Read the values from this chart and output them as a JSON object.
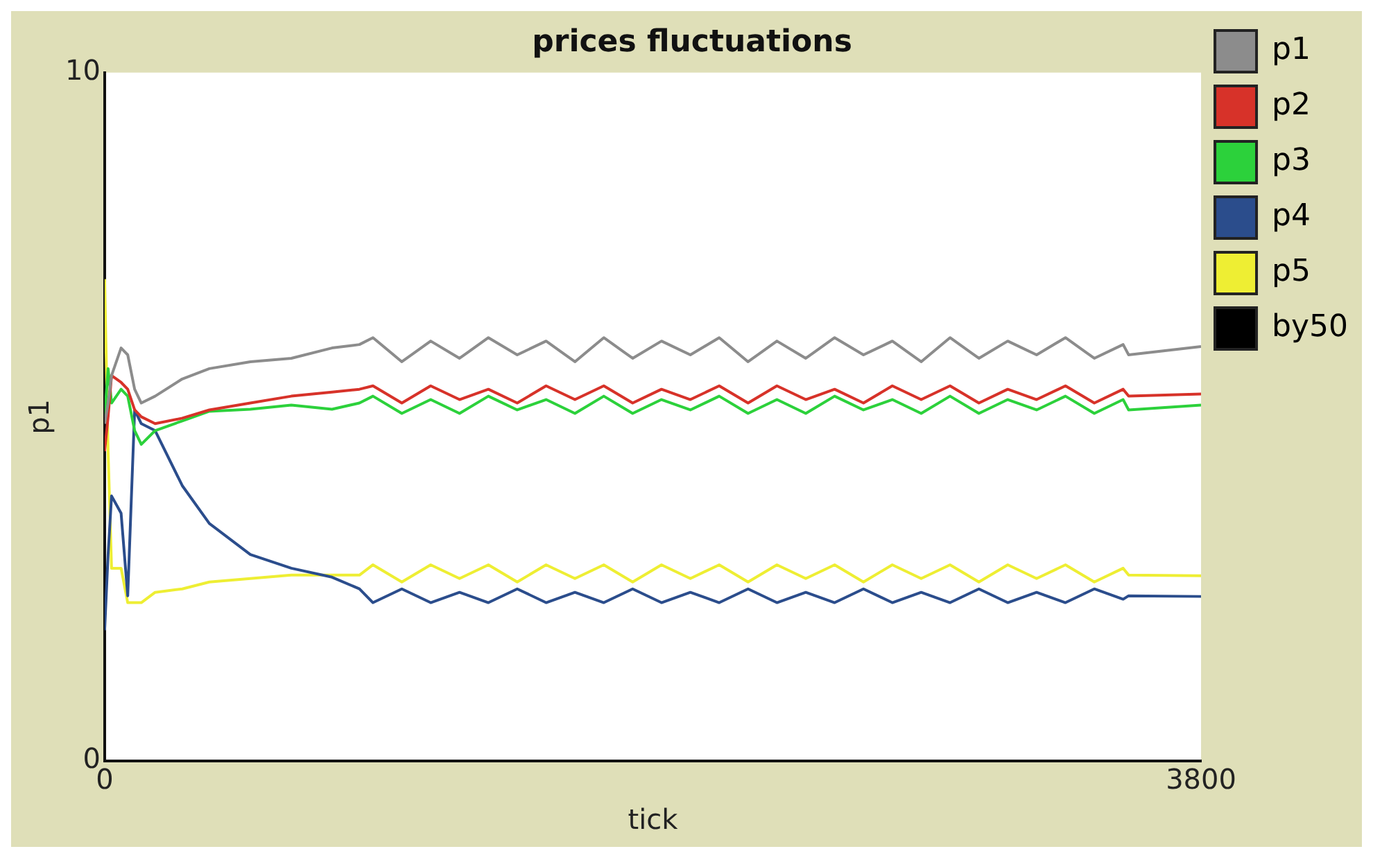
{
  "chart_data": {
    "type": "line",
    "title": "prices fluctuations",
    "xlabel": "tick",
    "ylabel": "p1",
    "x": [
      0,
      12,
      24,
      57,
      80,
      104,
      127,
      175,
      269,
      363,
      505,
      647,
      788,
      883,
      930,
      1030,
      1130,
      1230,
      1330,
      1430,
      1530,
      1630,
      1730,
      1830,
      1930,
      2030,
      2130,
      2230,
      2330,
      2430,
      2530,
      2630,
      2730,
      2830,
      2930,
      3030,
      3130,
      3230,
      3330,
      3430,
      3530,
      3549,
      3800
    ],
    "series": [
      {
        "name": "p1",
        "color": "#8c8c8c",
        "values": [
          4.9,
          5.2,
          5.6,
          6.0,
          5.9,
          5.4,
          5.2,
          5.3,
          5.55,
          5.7,
          5.8,
          5.85,
          6.0,
          6.05,
          6.15,
          5.8,
          6.1,
          5.85,
          6.15,
          5.9,
          6.1,
          5.8,
          6.15,
          5.85,
          6.1,
          5.9,
          6.15,
          5.8,
          6.1,
          5.85,
          6.15,
          5.9,
          6.1,
          5.8,
          6.15,
          5.85,
          6.1,
          5.9,
          6.15,
          5.85,
          6.05,
          5.9,
          6.02
        ]
      },
      {
        "name": "p2",
        "color": "#d73229",
        "values": [
          4.5,
          5.0,
          5.6,
          5.5,
          5.4,
          5.1,
          5.0,
          4.9,
          4.98,
          5.1,
          5.2,
          5.3,
          5.36,
          5.4,
          5.45,
          5.2,
          5.45,
          5.25,
          5.4,
          5.2,
          5.45,
          5.25,
          5.45,
          5.2,
          5.4,
          5.25,
          5.45,
          5.2,
          5.45,
          5.25,
          5.4,
          5.2,
          5.45,
          5.25,
          5.45,
          5.2,
          5.4,
          5.25,
          5.45,
          5.2,
          5.4,
          5.3,
          5.33
        ]
      },
      {
        "name": "p3",
        "color": "#2cd13b",
        "values": [
          5.0,
          5.7,
          5.2,
          5.4,
          5.3,
          4.8,
          4.6,
          4.8,
          4.94,
          5.08,
          5.11,
          5.17,
          5.11,
          5.2,
          5.3,
          5.05,
          5.25,
          5.05,
          5.3,
          5.1,
          5.25,
          5.05,
          5.3,
          5.05,
          5.25,
          5.1,
          5.3,
          5.05,
          5.25,
          5.05,
          5.3,
          5.1,
          5.25,
          5.05,
          5.3,
          5.05,
          5.25,
          5.1,
          5.3,
          5.05,
          5.25,
          5.1,
          5.17
        ]
      },
      {
        "name": "p4",
        "color": "#2b4d8c",
        "values": [
          1.9,
          3.0,
          3.85,
          3.6,
          2.4,
          5.1,
          4.9,
          4.8,
          4.0,
          3.45,
          3.0,
          2.8,
          2.67,
          2.5,
          2.3,
          2.5,
          2.3,
          2.45,
          2.3,
          2.5,
          2.3,
          2.45,
          2.3,
          2.5,
          2.3,
          2.45,
          2.3,
          2.5,
          2.3,
          2.45,
          2.3,
          2.5,
          2.3,
          2.45,
          2.3,
          2.5,
          2.3,
          2.45,
          2.3,
          2.5,
          2.35,
          2.4,
          2.39
        ]
      },
      {
        "name": "p5",
        "color": "#eeee33",
        "values": [
          7.0,
          4.5,
          2.8,
          2.8,
          2.3,
          2.3,
          2.3,
          2.45,
          2.5,
          2.6,
          2.65,
          2.7,
          2.7,
          2.7,
          2.85,
          2.6,
          2.85,
          2.65,
          2.85,
          2.6,
          2.85,
          2.65,
          2.85,
          2.6,
          2.85,
          2.65,
          2.85,
          2.6,
          2.85,
          2.65,
          2.85,
          2.6,
          2.85,
          2.65,
          2.85,
          2.6,
          2.85,
          2.65,
          2.85,
          2.6,
          2.8,
          2.7,
          2.69
        ]
      },
      {
        "name": "by50",
        "color": "#000000",
        "values": [
          null,
          null,
          null,
          null,
          null,
          null,
          null,
          null,
          null,
          null,
          null,
          null,
          null,
          null,
          null,
          null,
          null,
          null,
          null,
          null,
          null,
          null,
          null,
          null,
          null,
          null,
          null,
          null,
          null,
          null,
          null,
          null,
          null,
          null,
          null,
          null,
          null,
          null,
          null,
          null,
          null,
          null,
          null
        ]
      }
    ],
    "xlim": [
      0,
      3800
    ],
    "ylim": [
      0,
      10
    ],
    "xticks": [
      0,
      3800
    ],
    "yticks": [
      0,
      10
    ],
    "legend": "right",
    "marker": "none",
    "line_style": "solid"
  }
}
